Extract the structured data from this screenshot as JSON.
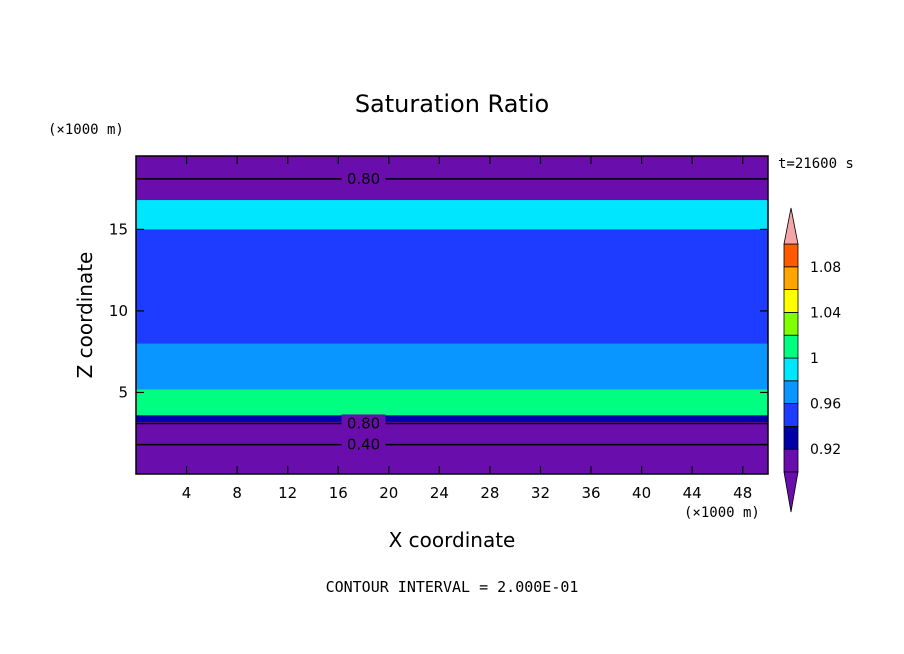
{
  "chart_data": {
    "type": "heatmap",
    "title": "Saturation Ratio",
    "xlabel": "X coordinate",
    "ylabel": "Z coordinate",
    "x_unit": "(×1000 m)",
    "y_unit": "(×1000 m)",
    "time_label": "t=21600 s",
    "xlim": [
      0,
      50
    ],
    "ylim": [
      0,
      19.5
    ],
    "x_ticks": [
      4,
      8,
      12,
      16,
      20,
      24,
      28,
      32,
      36,
      40,
      44,
      48
    ],
    "y_ticks": [
      5,
      10,
      15
    ],
    "colorbar": {
      "levels": [
        0.9,
        0.92,
        0.94,
        0.96,
        0.98,
        1.0,
        1.02,
        1.04,
        1.06,
        1.08,
        1.1
      ],
      "labels": [
        "0.92",
        "0.96",
        "1",
        "1.04",
        "1.08"
      ],
      "label_values": [
        0.92,
        0.96,
        1.0,
        1.04,
        1.08
      ],
      "colors": [
        "#6a0dad",
        "#0000a8",
        "#1e3cff",
        "#0a96ff",
        "#00e6ff",
        "#00ff80",
        "#7fff00",
        "#ffff00",
        "#ffa500",
        "#ff5a00",
        "#ff1e1e"
      ],
      "under_color": "#6a0dad",
      "over_color": "#f4a5a5"
    },
    "layers": [
      {
        "z": [
          0,
          3.2
        ],
        "value": 0.6
      },
      {
        "z": [
          3.2,
          3.6
        ],
        "value": 0.91
      },
      {
        "z": [
          3.6,
          5.2
        ],
        "value": 0.98
      },
      {
        "z": [
          5.2,
          8.0
        ],
        "value": 0.95
      },
      {
        "z": [
          8.0,
          15.0
        ],
        "value": 0.93
      },
      {
        "z": [
          15.0,
          16.8
        ],
        "value": 0.97
      },
      {
        "z": [
          16.8,
          19.5
        ],
        "value": 0.85
      }
    ],
    "contour_lines": [
      {
        "value": 0.8,
        "label": "0.80",
        "z": 18.1
      },
      {
        "value": 0.8,
        "label": "0.80",
        "z": 3.1
      },
      {
        "value": 0.4,
        "label": "0.40",
        "z": 1.8
      }
    ],
    "footer": "CONTOUR INTERVAL = 2.000E-01"
  }
}
